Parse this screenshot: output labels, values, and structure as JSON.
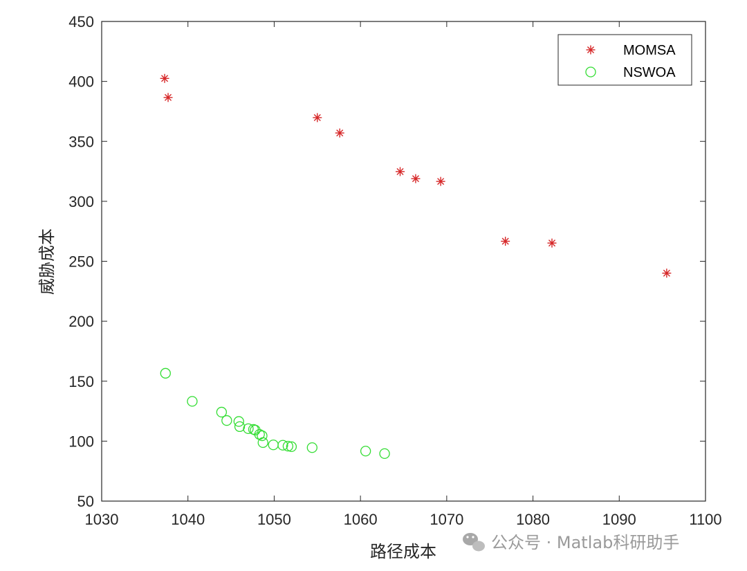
{
  "chart_data": {
    "type": "scatter",
    "title": "",
    "xlabel": "路径成本",
    "ylabel": "威胁成本",
    "xlim": [
      1030,
      1100
    ],
    "ylim": [
      50,
      450
    ],
    "x_ticks": [
      1030,
      1040,
      1050,
      1060,
      1070,
      1080,
      1090,
      1100
    ],
    "y_ticks": [
      50,
      100,
      150,
      200,
      250,
      300,
      350,
      400,
      450
    ],
    "grid": false,
    "legend_position": "top-right",
    "series": [
      {
        "name": "MOMSA",
        "marker": "asterisk",
        "color": "#d62728",
        "points": [
          [
            1037.3,
            402.5
          ],
          [
            1037.7,
            386.6
          ],
          [
            1055.0,
            369.8
          ],
          [
            1057.6,
            357.0
          ],
          [
            1064.6,
            324.8
          ],
          [
            1066.4,
            318.9
          ],
          [
            1069.3,
            316.6
          ],
          [
            1076.8,
            266.7
          ],
          [
            1082.2,
            265.2
          ],
          [
            1095.5,
            240.1
          ]
        ]
      },
      {
        "name": "NSWOA",
        "marker": "circle",
        "color": "#33dd33",
        "points": [
          [
            1037.4,
            156.6
          ],
          [
            1040.5,
            133.2
          ],
          [
            1043.9,
            124.2
          ],
          [
            1044.5,
            117.2
          ],
          [
            1045.9,
            116.4
          ],
          [
            1046.0,
            112.1
          ],
          [
            1047.0,
            110.4
          ],
          [
            1047.6,
            109.8
          ],
          [
            1047.8,
            109.2
          ],
          [
            1048.3,
            105.6
          ],
          [
            1048.6,
            104.5
          ],
          [
            1048.7,
            98.8
          ],
          [
            1049.9,
            96.9
          ],
          [
            1051.0,
            96.6
          ],
          [
            1051.6,
            95.8
          ],
          [
            1052.0,
            95.4
          ],
          [
            1054.4,
            94.6
          ],
          [
            1060.6,
            91.7
          ],
          [
            1062.8,
            89.6
          ]
        ]
      }
    ]
  },
  "watermark": {
    "text": "公众号 · Matlab科研助手",
    "icon": "wechat-icon"
  }
}
